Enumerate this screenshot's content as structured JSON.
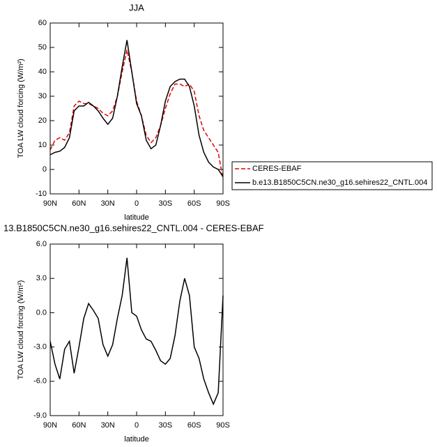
{
  "chart_data": [
    {
      "type": "line",
      "title": "JJA",
      "xlabel": "latitude",
      "ylabel": "TOA LW cloud forcing (W/m²)",
      "x": [
        90,
        85,
        80,
        75,
        70,
        65,
        60,
        55,
        50,
        45,
        40,
        35,
        30,
        25,
        20,
        15,
        10,
        5,
        0,
        -5,
        -10,
        -15,
        -20,
        -25,
        -30,
        -35,
        -40,
        -45,
        -50,
        -55,
        -60,
        -65,
        -70,
        -75,
        -80,
        -85,
        -90
      ],
      "xlim": [
        90,
        -90
      ],
      "xticks": [
        {
          "value": 90,
          "label": "90N"
        },
        {
          "value": 60,
          "label": "60N"
        },
        {
          "value": 30,
          "label": "30N"
        },
        0,
        {
          "value": -30,
          "label": "30S"
        },
        {
          "value": -60,
          "label": "60S"
        },
        {
          "value": -90,
          "label": "90S"
        }
      ],
      "ylim": [
        -10,
        60
      ],
      "yticks": [
        -10,
        0,
        10,
        20,
        30,
        40,
        50,
        60
      ],
      "legend": "outside-right",
      "series": [
        {
          "name": "CERES-EBAF",
          "color": "#e00000",
          "dash": true,
          "values": [
            8,
            12,
            13,
            12,
            15,
            26,
            28,
            27,
            27,
            26,
            25,
            23,
            22,
            24,
            30,
            40,
            49,
            40,
            28,
            22,
            14,
            11,
            13,
            18,
            25,
            31,
            35,
            35,
            34,
            35,
            32,
            22,
            16,
            13,
            10,
            7,
            -4
          ]
        },
        {
          "name": "b.e13.B1850C5CN.ne30_g16.sehires22_CNTL.004",
          "color": "#000000",
          "dash": false,
          "values": [
            6,
            7,
            7.5,
            9,
            13,
            24,
            26,
            26,
            27.5,
            26,
            24,
            21,
            18.5,
            21,
            30,
            42,
            53,
            40,
            27,
            22,
            12,
            8.5,
            10,
            18,
            28,
            34,
            36,
            37,
            37,
            34,
            26,
            14,
            7,
            3,
            1,
            0,
            -3
          ]
        }
      ]
    },
    {
      "type": "line",
      "title": "13.B1850C5CN.ne30_g16.sehires22_CNTL.004 - CERES-EBAF",
      "xlabel": "latitude",
      "ylabel": "TOA LW cloud forcing (W/m²)",
      "x": [
        90,
        85,
        80,
        75,
        70,
        65,
        60,
        55,
        50,
        45,
        40,
        35,
        30,
        25,
        20,
        15,
        10,
        5,
        0,
        -5,
        -10,
        -15,
        -20,
        -25,
        -30,
        -35,
        -40,
        -45,
        -50,
        -55,
        -60,
        -65,
        -70,
        -75,
        -80,
        -85,
        -90
      ],
      "xlim": [
        90,
        -90
      ],
      "xticks": [
        {
          "value": 90,
          "label": "90N"
        },
        {
          "value": 60,
          "label": "60N"
        },
        {
          "value": 30,
          "label": "30N"
        },
        0,
        {
          "value": -30,
          "label": "30S"
        },
        {
          "value": -60,
          "label": "60S"
        },
        {
          "value": -90,
          "label": "90S"
        }
      ],
      "ylim": [
        -9,
        6
      ],
      "yticks": [
        {
          "value": -9,
          "label": "-9.0"
        },
        {
          "value": -6,
          "label": "-6.0"
        },
        {
          "value": -3,
          "label": "-3.0"
        },
        {
          "value": 0,
          "label": "0.0"
        },
        {
          "value": 3,
          "label": "3.0"
        },
        {
          "value": 6,
          "label": "6.0"
        }
      ],
      "series": [
        {
          "color": "#000000",
          "dash": false,
          "values": [
            -2.5,
            -4.5,
            -5.8,
            -3.2,
            -2.5,
            -5.3,
            -3,
            -0.5,
            0.8,
            0.2,
            -0.5,
            -2.8,
            -3.8,
            -2.8,
            -0.5,
            1.5,
            4.8,
            0,
            -0.3,
            -1.5,
            -2.3,
            -2.5,
            -3.3,
            -4.2,
            -4.5,
            -4,
            -2,
            1,
            3,
            1.5,
            -3,
            -4,
            -5.8,
            -7,
            -8,
            -7,
            1.5
          ]
        }
      ]
    }
  ]
}
